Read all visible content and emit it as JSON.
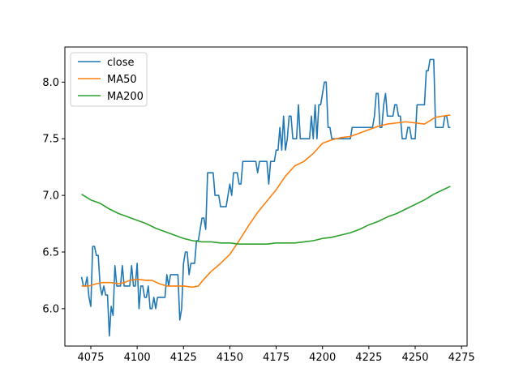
{
  "chart_data": {
    "type": "line",
    "title": "",
    "xlabel": "",
    "ylabel": "",
    "xlim": [
      4061,
      4278
    ],
    "ylim": [
      5.67,
      8.31
    ],
    "x_ticks": [
      4075,
      4100,
      4125,
      4150,
      4175,
      4200,
      4225,
      4250,
      4275
    ],
    "y_ticks": [
      6.0,
      6.5,
      7.0,
      7.5,
      8.0
    ],
    "x_tick_labels": [
      "4075",
      "4100",
      "4125",
      "4150",
      "4175",
      "4200",
      "4225",
      "4250",
      "4275"
    ],
    "y_tick_labels": [
      "6.0",
      "6.5",
      "7.0",
      "7.5",
      "8.0"
    ],
    "grid": false,
    "legend_position": "upper-left",
    "series": [
      {
        "name": "close",
        "color": "#1f77b4",
        "points": [
          [
            4070,
            6.28
          ],
          [
            4071,
            6.2
          ],
          [
            4072,
            6.2
          ],
          [
            4073,
            6.28
          ],
          [
            4074,
            6.1
          ],
          [
            4075,
            6.02
          ],
          [
            4076,
            6.55
          ],
          [
            4077,
            6.55
          ],
          [
            4078,
            6.47
          ],
          [
            4079,
            6.47
          ],
          [
            4080,
            6.2
          ],
          [
            4081,
            6.12
          ],
          [
            4082,
            6.2
          ],
          [
            4083,
            6.12
          ],
          [
            4084,
            6.12
          ],
          [
            4085,
            5.76
          ],
          [
            4086,
            6.02
          ],
          [
            4087,
            5.94
          ],
          [
            4088,
            6.38
          ],
          [
            4089,
            6.2
          ],
          [
            4090,
            6.2
          ],
          [
            4091,
            6.2
          ],
          [
            4092,
            6.38
          ],
          [
            4093,
            6.2
          ],
          [
            4094,
            6.2
          ],
          [
            4095,
            6.2
          ],
          [
            4096,
            6.2
          ],
          [
            4097,
            6.38
          ],
          [
            4098,
            6.2
          ],
          [
            4099,
            6.2
          ],
          [
            4100,
            6.4
          ],
          [
            4101,
            6.0
          ],
          [
            4102,
            6.2
          ],
          [
            4103,
            6.2
          ],
          [
            4104,
            6.1
          ],
          [
            4105,
            6.1
          ],
          [
            4106,
            6.2
          ],
          [
            4107,
            6.0
          ],
          [
            4108,
            6.0
          ],
          [
            4109,
            6.1
          ],
          [
            4110,
            6.0
          ],
          [
            4111,
            6.1
          ],
          [
            4112,
            6.1
          ],
          [
            4113,
            6.1
          ],
          [
            4114,
            6.1
          ],
          [
            4115,
            6.1
          ],
          [
            4116,
            6.3
          ],
          [
            4117,
            6.2
          ],
          [
            4118,
            6.3
          ],
          [
            4119,
            6.3
          ],
          [
            4120,
            6.3
          ],
          [
            4121,
            6.3
          ],
          [
            4122,
            6.3
          ],
          [
            4123,
            5.9
          ],
          [
            4124,
            6.0
          ],
          [
            4125,
            6.4
          ],
          [
            4126,
            6.5
          ],
          [
            4127,
            6.5
          ],
          [
            4128,
            6.3
          ],
          [
            4129,
            6.4
          ],
          [
            4130,
            6.4
          ],
          [
            4131,
            6.4
          ],
          [
            4132,
            6.6
          ],
          [
            4133,
            6.6
          ],
          [
            4134,
            6.7
          ],
          [
            4135,
            6.8
          ],
          [
            4136,
            6.8
          ],
          [
            4137,
            6.7
          ],
          [
            4138,
            7.2
          ],
          [
            4139,
            7.2
          ],
          [
            4140,
            7.2
          ],
          [
            4141,
            7.2
          ],
          [
            4142,
            7.0
          ],
          [
            4143,
            7.0
          ],
          [
            4144,
            7.0
          ],
          [
            4145,
            6.9
          ],
          [
            4146,
            6.9
          ],
          [
            4147,
            6.9
          ],
          [
            4148,
            6.9
          ],
          [
            4149,
            7.0
          ],
          [
            4150,
            7.1
          ],
          [
            4151,
            7.0
          ],
          [
            4152,
            7.2
          ],
          [
            4153,
            7.2
          ],
          [
            4154,
            7.2
          ],
          [
            4155,
            7.1
          ],
          [
            4156,
            7.1
          ],
          [
            4157,
            7.3
          ],
          [
            4158,
            7.3
          ],
          [
            4159,
            7.3
          ],
          [
            4160,
            7.3
          ],
          [
            4161,
            7.3
          ],
          [
            4162,
            7.3
          ],
          [
            4163,
            7.3
          ],
          [
            4164,
            7.3
          ],
          [
            4165,
            7.2
          ],
          [
            4166,
            7.3
          ],
          [
            4167,
            7.3
          ],
          [
            4168,
            7.3
          ],
          [
            4169,
            7.3
          ],
          [
            4170,
            7.3
          ],
          [
            4171,
            7.1
          ],
          [
            4172,
            7.3
          ],
          [
            4173,
            7.3
          ],
          [
            4174,
            7.3
          ],
          [
            4175,
            7.4
          ],
          [
            4176,
            7.4
          ],
          [
            4177,
            7.6
          ],
          [
            4178,
            7.4
          ],
          [
            4179,
            7.7
          ],
          [
            4180,
            7.4
          ],
          [
            4181,
            7.5
          ],
          [
            4182,
            7.7
          ],
          [
            4183,
            7.7
          ],
          [
            4184,
            7.5
          ],
          [
            4185,
            7.5
          ],
          [
            4186,
            7.5
          ],
          [
            4187,
            7.8
          ],
          [
            4188,
            7.5
          ],
          [
            4189,
            7.5
          ],
          [
            4190,
            7.5
          ],
          [
            4191,
            7.5
          ],
          [
            4192,
            7.5
          ],
          [
            4193,
            7.5
          ],
          [
            4194,
            7.7
          ],
          [
            4195,
            7.5
          ],
          [
            4196,
            7.8
          ],
          [
            4197,
            7.5
          ],
          [
            4198,
            7.8
          ],
          [
            4199,
            7.8
          ],
          [
            4200,
            7.9
          ],
          [
            4201,
            8.0
          ],
          [
            4202,
            8.0
          ],
          [
            4203,
            7.6
          ],
          [
            4204,
            7.6
          ],
          [
            4205,
            7.5
          ],
          [
            4206,
            7.5
          ],
          [
            4207,
            7.5
          ],
          [
            4208,
            7.5
          ],
          [
            4209,
            7.5
          ],
          [
            4210,
            7.5
          ],
          [
            4211,
            7.5
          ],
          [
            4212,
            7.5
          ],
          [
            4213,
            7.5
          ],
          [
            4214,
            7.5
          ],
          [
            4215,
            7.5
          ],
          [
            4216,
            7.6
          ],
          [
            4217,
            7.6
          ],
          [
            4218,
            7.6
          ],
          [
            4219,
            7.6
          ],
          [
            4220,
            7.6
          ],
          [
            4221,
            7.6
          ],
          [
            4222,
            7.6
          ],
          [
            4223,
            7.6
          ],
          [
            4224,
            7.6
          ],
          [
            4225,
            7.6
          ],
          [
            4226,
            7.6
          ],
          [
            4227,
            7.6
          ],
          [
            4228,
            7.7
          ],
          [
            4229,
            7.9
          ],
          [
            4230,
            7.9
          ],
          [
            4231,
            7.6
          ],
          [
            4232,
            7.6
          ],
          [
            4233,
            7.8
          ],
          [
            4234,
            7.9
          ],
          [
            4235,
            7.7
          ],
          [
            4236,
            7.7
          ],
          [
            4237,
            7.7
          ],
          [
            4238,
            7.7
          ],
          [
            4239,
            7.8
          ],
          [
            4240,
            7.8
          ],
          [
            4241,
            7.7
          ],
          [
            4242,
            7.7
          ],
          [
            4243,
            7.5
          ],
          [
            4244,
            7.5
          ],
          [
            4245,
            7.5
          ],
          [
            4246,
            7.6
          ],
          [
            4247,
            7.6
          ],
          [
            4248,
            7.5
          ],
          [
            4249,
            7.5
          ],
          [
            4250,
            7.5
          ],
          [
            4251,
            7.8
          ],
          [
            4252,
            7.8
          ],
          [
            4253,
            7.8
          ],
          [
            4254,
            7.8
          ],
          [
            4255,
            7.8
          ],
          [
            4256,
            8.1
          ],
          [
            4257,
            8.1
          ],
          [
            4258,
            8.2
          ],
          [
            4259,
            8.2
          ],
          [
            4260,
            8.2
          ],
          [
            4261,
            7.6
          ],
          [
            4262,
            7.6
          ],
          [
            4263,
            7.6
          ],
          [
            4264,
            7.6
          ],
          [
            4265,
            7.6
          ],
          [
            4266,
            7.7
          ],
          [
            4267,
            7.7
          ],
          [
            4268,
            7.6
          ],
          [
            4269,
            7.6
          ]
        ]
      },
      {
        "name": "MA50",
        "color": "#ff7f0e",
        "points": [
          [
            4070,
            6.2
          ],
          [
            4074,
            6.2
          ],
          [
            4076,
            6.21
          ],
          [
            4078,
            6.22
          ],
          [
            4081,
            6.23
          ],
          [
            4086,
            6.23
          ],
          [
            4090,
            6.22
          ],
          [
            4093,
            6.23
          ],
          [
            4096,
            6.25
          ],
          [
            4100,
            6.26
          ],
          [
            4105,
            6.25
          ],
          [
            4108,
            6.25
          ],
          [
            4112,
            6.22
          ],
          [
            4116,
            6.2
          ],
          [
            4120,
            6.2
          ],
          [
            4125,
            6.2
          ],
          [
            4130,
            6.19
          ],
          [
            4133,
            6.2
          ],
          [
            4136,
            6.26
          ],
          [
            4140,
            6.33
          ],
          [
            4145,
            6.4
          ],
          [
            4150,
            6.48
          ],
          [
            4155,
            6.6
          ],
          [
            4160,
            6.73
          ],
          [
            4165,
            6.85
          ],
          [
            4170,
            6.95
          ],
          [
            4175,
            7.05
          ],
          [
            4180,
            7.17
          ],
          [
            4185,
            7.26
          ],
          [
            4190,
            7.3
          ],
          [
            4195,
            7.37
          ],
          [
            4200,
            7.46
          ],
          [
            4205,
            7.49
          ],
          [
            4210,
            7.51
          ],
          [
            4215,
            7.52
          ],
          [
            4220,
            7.55
          ],
          [
            4225,
            7.58
          ],
          [
            4230,
            7.61
          ],
          [
            4235,
            7.63
          ],
          [
            4240,
            7.64
          ],
          [
            4245,
            7.65
          ],
          [
            4250,
            7.64
          ],
          [
            4255,
            7.63
          ],
          [
            4258,
            7.66
          ],
          [
            4261,
            7.69
          ],
          [
            4265,
            7.7
          ],
          [
            4269,
            7.71
          ]
        ]
      },
      {
        "name": "MA200",
        "color": "#2ca02c",
        "points": [
          [
            4070,
            7.01
          ],
          [
            4075,
            6.96
          ],
          [
            4080,
            6.93
          ],
          [
            4085,
            6.88
          ],
          [
            4090,
            6.84
          ],
          [
            4095,
            6.81
          ],
          [
            4100,
            6.78
          ],
          [
            4105,
            6.75
          ],
          [
            4110,
            6.71
          ],
          [
            4115,
            6.68
          ],
          [
            4120,
            6.65
          ],
          [
            4125,
            6.62
          ],
          [
            4130,
            6.6
          ],
          [
            4135,
            6.59
          ],
          [
            4140,
            6.59
          ],
          [
            4145,
            6.58
          ],
          [
            4150,
            6.58
          ],
          [
            4155,
            6.57
          ],
          [
            4160,
            6.57
          ],
          [
            4165,
            6.57
          ],
          [
            4170,
            6.57
          ],
          [
            4175,
            6.58
          ],
          [
            4180,
            6.58
          ],
          [
            4185,
            6.58
          ],
          [
            4190,
            6.59
          ],
          [
            4195,
            6.6
          ],
          [
            4200,
            6.62
          ],
          [
            4205,
            6.63
          ],
          [
            4210,
            6.65
          ],
          [
            4215,
            6.67
          ],
          [
            4220,
            6.7
          ],
          [
            4225,
            6.74
          ],
          [
            4230,
            6.77
          ],
          [
            4235,
            6.81
          ],
          [
            4240,
            6.84
          ],
          [
            4245,
            6.88
          ],
          [
            4250,
            6.92
          ],
          [
            4255,
            6.96
          ],
          [
            4260,
            7.01
          ],
          [
            4265,
            7.05
          ],
          [
            4269,
            7.08
          ]
        ]
      }
    ]
  }
}
